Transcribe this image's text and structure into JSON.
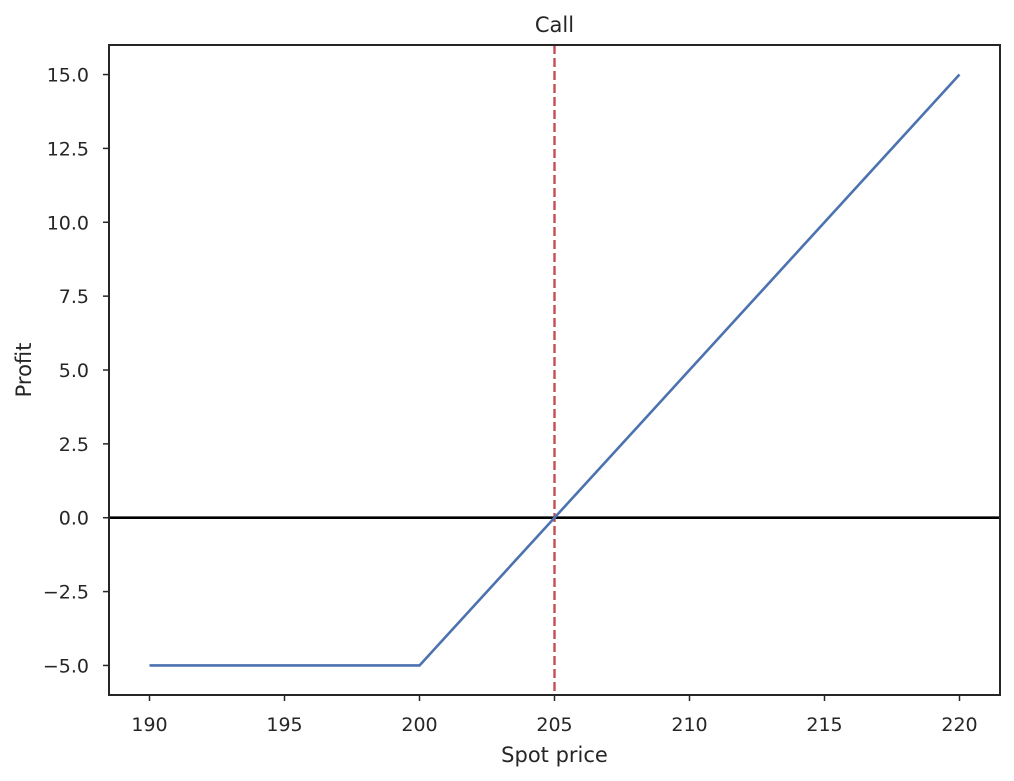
{
  "chart_data": {
    "type": "line",
    "title": "Call",
    "xlabel": "Spot price",
    "ylabel": "Profit",
    "xlim": [
      188.5,
      221.5
    ],
    "ylim": [
      -6.0,
      16.0
    ],
    "xticks": [
      190,
      195,
      200,
      205,
      210,
      215,
      220
    ],
    "xtick_labels": [
      "190",
      "195",
      "200",
      "205",
      "210",
      "215",
      "220"
    ],
    "yticks": [
      -5.0,
      -2.5,
      0.0,
      2.5,
      5.0,
      7.5,
      10.0,
      12.5,
      15.0
    ],
    "ytick_labels": [
      "−5.0",
      "−2.5",
      "0.0",
      "2.5",
      "5.0",
      "7.5",
      "10.0",
      "12.5",
      "15.0"
    ],
    "grid": false,
    "series": [
      {
        "x": [
          190,
          200,
          205,
          220
        ],
        "y": [
          -5,
          -5,
          0,
          15
        ],
        "color": "#4c72b0"
      }
    ],
    "reference_lines": [
      {
        "orientation": "horizontal",
        "value": 0,
        "color": "#000000",
        "style": "solid"
      },
      {
        "orientation": "vertical",
        "value": 205,
        "color": "#c44e52",
        "style": "dashed"
      }
    ]
  }
}
